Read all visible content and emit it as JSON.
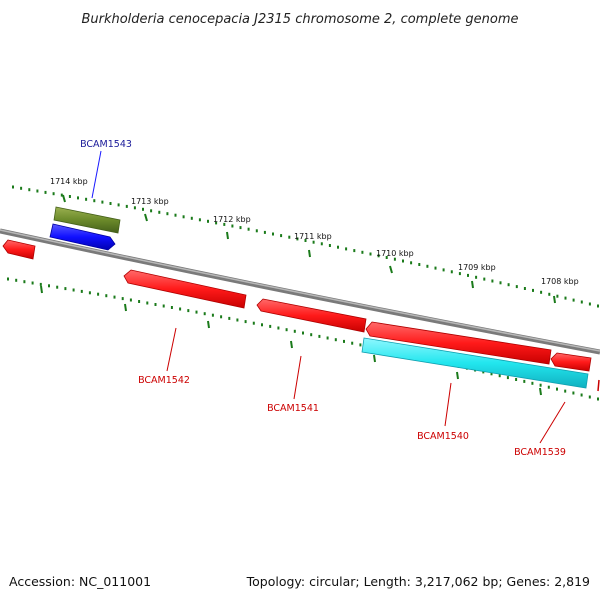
{
  "title": "Burkholderia cenocepacia J2315 chromosome 2, complete genome",
  "accession_text": "Accession: NC_011001",
  "summary_text": "Topology: circular; Length: 3,217,062 bp; Genes: 2,819",
  "colors": {
    "backbone": "#888888",
    "tick": "#1a7a1a",
    "gene_red": "#ff2a2a",
    "gene_blue": "#1a1aff",
    "gene_olive": "#6b8a2a",
    "gene_cyan": "#22e6ee",
    "label_blue": "#1a1a99",
    "label_red": "#cc0000"
  },
  "tick_labels": [
    "1714 kbp",
    "1713 kbp",
    "1712 kbp",
    "1711 kbp",
    "1710 kbp",
    "1709 kbp",
    "1708 kbp"
  ],
  "gene_labels": [
    {
      "text": "BCAM1543",
      "color": "blue"
    },
    {
      "text": "BCAM1542",
      "color": "red"
    },
    {
      "text": "BCAM1541",
      "color": "red"
    },
    {
      "text": "BCAM1540",
      "color": "red"
    },
    {
      "text": "BCAM1539",
      "color": "red"
    }
  ]
}
